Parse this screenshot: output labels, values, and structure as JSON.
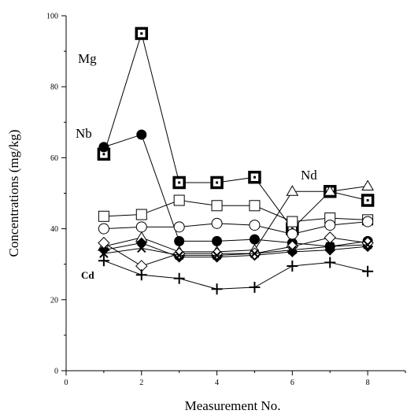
{
  "chart_data": {
    "type": "line",
    "xlabel": "Measurement No.",
    "ylabel": "Concentrations (mg/kg)",
    "xlim": [
      0,
      9
    ],
    "ylim": [
      0,
      100
    ],
    "xticks": [
      0,
      2,
      4,
      6,
      8
    ],
    "yticks": [
      0,
      20,
      40,
      60,
      80,
      100
    ],
    "grid": false,
    "annotations": [
      "Mg",
      "Nb",
      "Nd",
      "Cd"
    ],
    "series": [
      {
        "name": "Mg",
        "marker": "square-dot",
        "x": [
          1,
          2,
          3,
          4,
          5,
          6,
          7,
          8
        ],
        "values": [
          61,
          95,
          53,
          53,
          54.5,
          40,
          50.5,
          48
        ]
      },
      {
        "name": "Nb",
        "marker": "filled-circle",
        "x": [
          1,
          2,
          3,
          4,
          5,
          6,
          7,
          8
        ],
        "values": [
          63,
          66.5,
          36.5,
          36.5,
          37,
          36,
          35,
          36.5
        ]
      },
      {
        "name": "Nd",
        "marker": "open-triangle",
        "x": [
          1,
          2,
          3,
          4,
          5,
          6,
          7,
          8
        ],
        "values": [
          35,
          37.5,
          33.5,
          33.5,
          34,
          50.5,
          50.5,
          52
        ]
      },
      {
        "marker": "open-square",
        "x": [
          1,
          2,
          3,
          4,
          5,
          6,
          7,
          8
        ],
        "values": [
          43.5,
          44,
          48,
          46.5,
          46.5,
          42,
          43,
          42.5
        ]
      },
      {
        "marker": "open-circle",
        "x": [
          1,
          2,
          3,
          4,
          5,
          6,
          7,
          8
        ],
        "values": [
          40,
          40.5,
          40.5,
          41.5,
          41,
          38.5,
          41,
          42
        ]
      },
      {
        "marker": "filled-diamond",
        "x": [
          1,
          2,
          3,
          4,
          5,
          6,
          7,
          8
        ],
        "values": [
          34,
          36,
          32,
          32,
          32.5,
          33.5,
          34,
          35
        ]
      },
      {
        "marker": "open-diamond",
        "x": [
          1,
          2,
          3,
          4,
          5,
          6,
          7,
          8
        ],
        "values": [
          36,
          29.5,
          33,
          33,
          33,
          35,
          37.5,
          36
        ]
      },
      {
        "marker": "x",
        "x": [
          1,
          2,
          3,
          4,
          5,
          6,
          7,
          8
        ],
        "values": [
          33,
          34.5,
          32.5,
          32.5,
          33,
          34,
          35,
          35.5
        ]
      },
      {
        "name": "Cd",
        "marker": "plus",
        "x": [
          1,
          2,
          3,
          4,
          5,
          6,
          7,
          8
        ],
        "values": [
          31,
          27,
          26,
          23,
          23.5,
          29.5,
          30.5,
          28
        ]
      }
    ]
  }
}
